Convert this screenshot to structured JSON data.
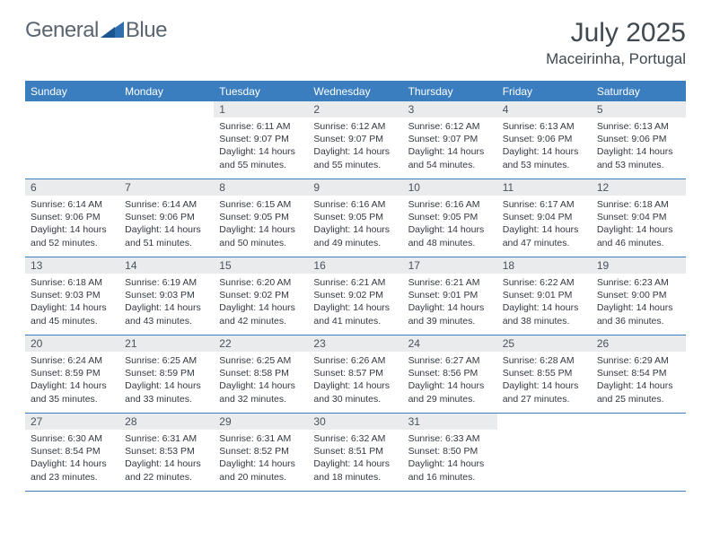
{
  "brand": {
    "name1": "General",
    "name2": "Blue"
  },
  "title": {
    "month": "July 2025",
    "location": "Maceirinha, Portugal"
  },
  "colors": {
    "header_bg": "#3b7ec0",
    "date_bg": "#e9ebed",
    "text": "#333840",
    "title_text": "#404850",
    "logo_text": "#5a6570",
    "logo_icon": "#2f6fb0"
  },
  "dayNames": [
    "Sunday",
    "Monday",
    "Tuesday",
    "Wednesday",
    "Thursday",
    "Friday",
    "Saturday"
  ],
  "weeks": [
    [
      null,
      null,
      {
        "d": "1",
        "sr": "6:11 AM",
        "ss": "9:07 PM",
        "dl": "14 hours and 55 minutes."
      },
      {
        "d": "2",
        "sr": "6:12 AM",
        "ss": "9:07 PM",
        "dl": "14 hours and 55 minutes."
      },
      {
        "d": "3",
        "sr": "6:12 AM",
        "ss": "9:07 PM",
        "dl": "14 hours and 54 minutes."
      },
      {
        "d": "4",
        "sr": "6:13 AM",
        "ss": "9:06 PM",
        "dl": "14 hours and 53 minutes."
      },
      {
        "d": "5",
        "sr": "6:13 AM",
        "ss": "9:06 PM",
        "dl": "14 hours and 53 minutes."
      }
    ],
    [
      {
        "d": "6",
        "sr": "6:14 AM",
        "ss": "9:06 PM",
        "dl": "14 hours and 52 minutes."
      },
      {
        "d": "7",
        "sr": "6:14 AM",
        "ss": "9:06 PM",
        "dl": "14 hours and 51 minutes."
      },
      {
        "d": "8",
        "sr": "6:15 AM",
        "ss": "9:05 PM",
        "dl": "14 hours and 50 minutes."
      },
      {
        "d": "9",
        "sr": "6:16 AM",
        "ss": "9:05 PM",
        "dl": "14 hours and 49 minutes."
      },
      {
        "d": "10",
        "sr": "6:16 AM",
        "ss": "9:05 PM",
        "dl": "14 hours and 48 minutes."
      },
      {
        "d": "11",
        "sr": "6:17 AM",
        "ss": "9:04 PM",
        "dl": "14 hours and 47 minutes."
      },
      {
        "d": "12",
        "sr": "6:18 AM",
        "ss": "9:04 PM",
        "dl": "14 hours and 46 minutes."
      }
    ],
    [
      {
        "d": "13",
        "sr": "6:18 AM",
        "ss": "9:03 PM",
        "dl": "14 hours and 45 minutes."
      },
      {
        "d": "14",
        "sr": "6:19 AM",
        "ss": "9:03 PM",
        "dl": "14 hours and 43 minutes."
      },
      {
        "d": "15",
        "sr": "6:20 AM",
        "ss": "9:02 PM",
        "dl": "14 hours and 42 minutes."
      },
      {
        "d": "16",
        "sr": "6:21 AM",
        "ss": "9:02 PM",
        "dl": "14 hours and 41 minutes."
      },
      {
        "d": "17",
        "sr": "6:21 AM",
        "ss": "9:01 PM",
        "dl": "14 hours and 39 minutes."
      },
      {
        "d": "18",
        "sr": "6:22 AM",
        "ss": "9:01 PM",
        "dl": "14 hours and 38 minutes."
      },
      {
        "d": "19",
        "sr": "6:23 AM",
        "ss": "9:00 PM",
        "dl": "14 hours and 36 minutes."
      }
    ],
    [
      {
        "d": "20",
        "sr": "6:24 AM",
        "ss": "8:59 PM",
        "dl": "14 hours and 35 minutes."
      },
      {
        "d": "21",
        "sr": "6:25 AM",
        "ss": "8:59 PM",
        "dl": "14 hours and 33 minutes."
      },
      {
        "d": "22",
        "sr": "6:25 AM",
        "ss": "8:58 PM",
        "dl": "14 hours and 32 minutes."
      },
      {
        "d": "23",
        "sr": "6:26 AM",
        "ss": "8:57 PM",
        "dl": "14 hours and 30 minutes."
      },
      {
        "d": "24",
        "sr": "6:27 AM",
        "ss": "8:56 PM",
        "dl": "14 hours and 29 minutes."
      },
      {
        "d": "25",
        "sr": "6:28 AM",
        "ss": "8:55 PM",
        "dl": "14 hours and 27 minutes."
      },
      {
        "d": "26",
        "sr": "6:29 AM",
        "ss": "8:54 PM",
        "dl": "14 hours and 25 minutes."
      }
    ],
    [
      {
        "d": "27",
        "sr": "6:30 AM",
        "ss": "8:54 PM",
        "dl": "14 hours and 23 minutes."
      },
      {
        "d": "28",
        "sr": "6:31 AM",
        "ss": "8:53 PM",
        "dl": "14 hours and 22 minutes."
      },
      {
        "d": "29",
        "sr": "6:31 AM",
        "ss": "8:52 PM",
        "dl": "14 hours and 20 minutes."
      },
      {
        "d": "30",
        "sr": "6:32 AM",
        "ss": "8:51 PM",
        "dl": "14 hours and 18 minutes."
      },
      {
        "d": "31",
        "sr": "6:33 AM",
        "ss": "8:50 PM",
        "dl": "14 hours and 16 minutes."
      },
      null,
      null
    ]
  ],
  "labels": {
    "sunrise": "Sunrise: ",
    "sunset": "Sunset: ",
    "daylight": "Daylight: "
  }
}
